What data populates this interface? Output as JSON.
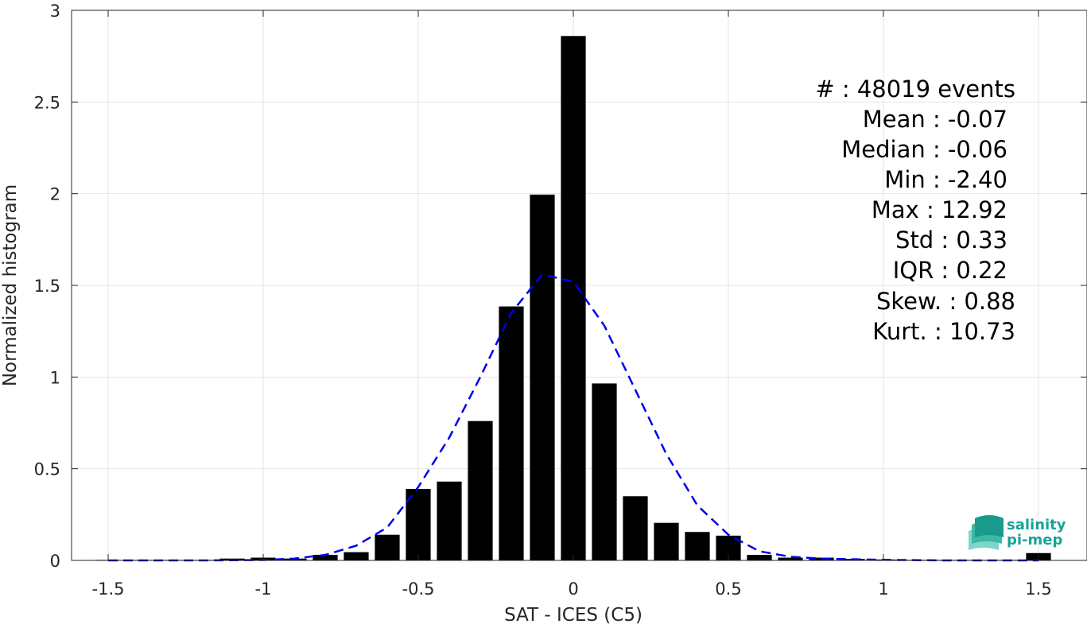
{
  "chart_data": {
    "type": "bar",
    "xlabel": "SAT - ICES (C5)",
    "ylabel": "Normalized histogram",
    "xlim": [
      -1.55,
      1.6
    ],
    "ylim": [
      0,
      3
    ],
    "x_ticks": [
      -1.5,
      -1,
      -0.5,
      0,
      0.5,
      1,
      1.5
    ],
    "x_tick_labels": [
      "-1.5",
      "-1",
      "-0.5",
      "0",
      "0.5",
      "1",
      "1.5"
    ],
    "y_ticks": [
      0,
      0.5,
      1,
      1.5,
      2,
      2.5,
      3
    ],
    "y_tick_labels": [
      "0",
      "0.5",
      "1",
      "1.5",
      "2",
      "2.5",
      "3"
    ],
    "grid": true,
    "bin_width": 0.1,
    "series": [
      {
        "type": "bar",
        "color": "#000000",
        "x": [
          -1.5,
          -1.4,
          -1.3,
          -1.2,
          -1.1,
          -1.0,
          -0.9,
          -0.8,
          -0.7,
          -0.6,
          -0.5,
          -0.4,
          -0.3,
          -0.2,
          -0.1,
          0.0,
          0.1,
          0.2,
          0.3,
          0.4,
          0.5,
          0.6,
          0.7,
          0.8,
          0.9,
          1.0,
          1.1,
          1.2,
          1.3,
          1.4,
          1.5
        ],
        "values": [
          0.003,
          0.003,
          0.003,
          0.003,
          0.01,
          0.015,
          0.01,
          0.03,
          0.045,
          0.14,
          0.39,
          0.43,
          0.76,
          1.385,
          1.995,
          2.86,
          0.965,
          0.35,
          0.205,
          0.155,
          0.135,
          0.03,
          0.015,
          0.015,
          0.008,
          0.005,
          0.003,
          0.003,
          0.003,
          0.003,
          0.04
        ]
      },
      {
        "type": "line",
        "style": "dashed",
        "color": "#0000ee",
        "x": [
          -1.5,
          -1.2,
          -1.0,
          -0.9,
          -0.8,
          -0.7,
          -0.6,
          -0.5,
          -0.4,
          -0.3,
          -0.2,
          -0.1,
          0.0,
          0.1,
          0.2,
          0.3,
          0.4,
          0.5,
          0.6,
          0.7,
          0.8,
          1.0,
          1.2,
          1.5
        ],
        "values": [
          0.0,
          0.0,
          0.002,
          0.01,
          0.03,
          0.08,
          0.18,
          0.4,
          0.67,
          1.0,
          1.35,
          1.56,
          1.52,
          1.28,
          0.93,
          0.58,
          0.3,
          0.14,
          0.05,
          0.02,
          0.01,
          0.003,
          0.0,
          0.0
        ]
      }
    ]
  },
  "stats": [
    "#  : 48019 events",
    "Mean : -0.07",
    "Median : -0.06",
    "Min : -2.40",
    "Max : 12.92",
    "Std : 0.33",
    "IQR : 0.22",
    "Skew. : 0.88",
    "Kurt. : 10.73"
  ],
  "logo": {
    "line1": "salinity",
    "line2": "pi-mep"
  }
}
